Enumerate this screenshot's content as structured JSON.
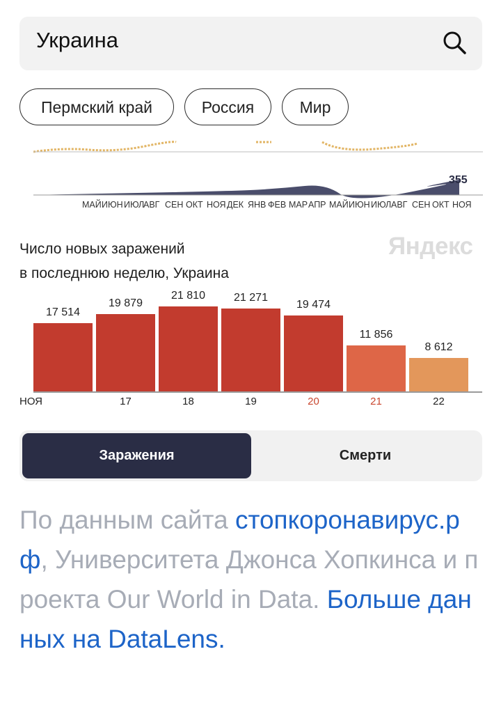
{
  "search": {
    "value": "Украина"
  },
  "regions": [
    "Пермский край",
    "Россия",
    "Мир"
  ],
  "sparkline": {
    "last_value": "355",
    "months": [
      "МАЙ",
      "ИЮН",
      "ИЮЛ",
      "АВГ",
      "СЕН",
      "ОКТ",
      "НОЯ",
      "ДЕК",
      "ЯНВ",
      "ФЕВ",
      "МАР",
      "АПР",
      "МАЙ",
      "ИЮН",
      "ИЮЛ",
      "АВГ",
      "СЕН",
      "ОКТ",
      "НОЯ"
    ]
  },
  "chart": {
    "title_line1": "Число новых заражений",
    "title_line2": "в последнюю неделю, Украина",
    "brand": "Яндекс"
  },
  "chart_data": {
    "type": "bar",
    "categories": [
      "НОЯ",
      "17",
      "18",
      "19",
      "20",
      "21",
      "22"
    ],
    "values": [
      17514,
      19879,
      21810,
      21271,
      19474,
      11856,
      8612
    ],
    "value_labels": [
      "17 514",
      "19 879",
      "21 810",
      "21 271",
      "19 474",
      "11 856",
      "8 612"
    ],
    "ylim": [
      0,
      25000
    ],
    "colors": [
      "#c23b2e",
      "#c23b2e",
      "#c23b2e",
      "#c23b2e",
      "#c23b2e",
      "#de6647",
      "#e3975b"
    ],
    "weekend_tick_color": "#c9472f",
    "weekend_ticks": [
      "20",
      "21"
    ]
  },
  "tabs": {
    "active": "Заражения",
    "inactive": "Смерти"
  },
  "source": {
    "prefix": "По данным сайта ",
    "link1": "стопкоронавирус.рф",
    "middle": ", Университета Джонса Хопкинса и проекта Our World in Data. ",
    "link2": "Больше данных на DataLens."
  }
}
